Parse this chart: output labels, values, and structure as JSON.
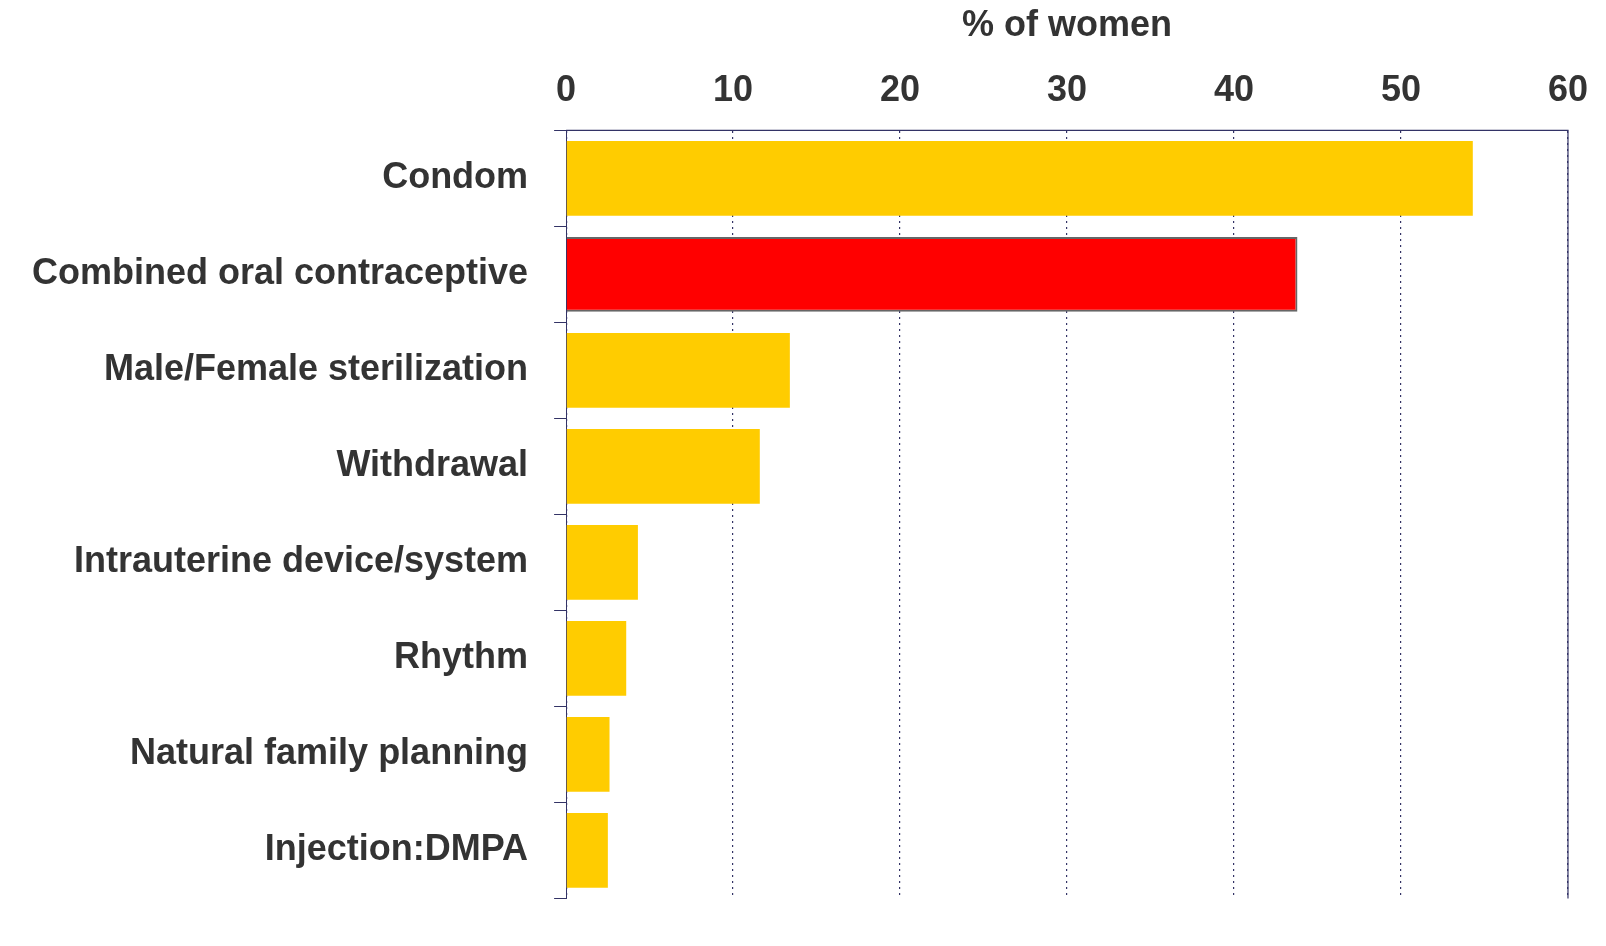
{
  "chart_data": {
    "type": "bar",
    "orientation": "horizontal",
    "xlabel": "% of women",
    "categories": [
      "Condom",
      "Combined oral contraceptive",
      "Male/Female sterilization",
      "Withdrawal",
      "Intrauterine device/system",
      "Rhythm",
      "Natural family planning",
      "Injection:DMPA"
    ],
    "values": [
      54.3,
      43.8,
      13.4,
      11.6,
      4.3,
      3.6,
      2.6,
      2.5
    ],
    "colors": [
      "#ffcc00",
      "#ff0000",
      "#ffcc00",
      "#ffcc00",
      "#ffcc00",
      "#ffcc00",
      "#ffcc00",
      "#ffcc00"
    ],
    "xlim": [
      0,
      60
    ],
    "xticks": [
      0,
      10,
      20,
      30,
      40,
      50,
      60
    ],
    "grid": "x",
    "legend": false
  }
}
